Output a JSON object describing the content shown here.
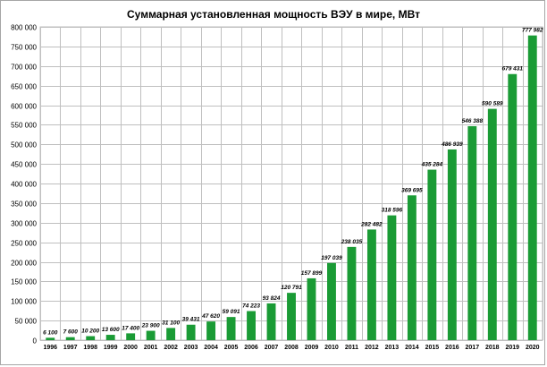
{
  "chart_data": {
    "type": "bar",
    "title": "Суммарная установленная мощность ВЭУ в мире, МВт",
    "xlabel": "",
    "ylabel": "",
    "ylim": [
      0,
      800000
    ],
    "ytick_step": 50000,
    "grid": true,
    "legend": "none",
    "bar_color": "#1a9b35",
    "categories": [
      "1996",
      "1997",
      "1998",
      "1999",
      "2000",
      "2001",
      "2002",
      "2003",
      "2004",
      "2005",
      "2006",
      "2007",
      "2008",
      "2009",
      "2010",
      "2011",
      "2012",
      "2013",
      "2014",
      "2015",
      "2016",
      "2017",
      "2018",
      "2019",
      "2020"
    ],
    "values": [
      6100,
      7600,
      10200,
      13600,
      17400,
      23900,
      31100,
      39431,
      47620,
      59091,
      74223,
      93824,
      120791,
      157899,
      197039,
      238035,
      282482,
      318596,
      369695,
      435284,
      486939,
      546388,
      590589,
      679431,
      777982
    ],
    "data_labels": [
      "6 100",
      "7 600",
      "10 200",
      "13 600",
      "17 400",
      "23 900",
      "31 100",
      "39 431",
      "47 620",
      "59 091",
      "74 223",
      "93 824",
      "120 791",
      "157 899",
      "197 039",
      "238 035",
      "282 482",
      "318 596",
      "369 695",
      "435 284",
      "486 939",
      "546 388",
      "590 589",
      "679 431",
      "777 982"
    ]
  }
}
